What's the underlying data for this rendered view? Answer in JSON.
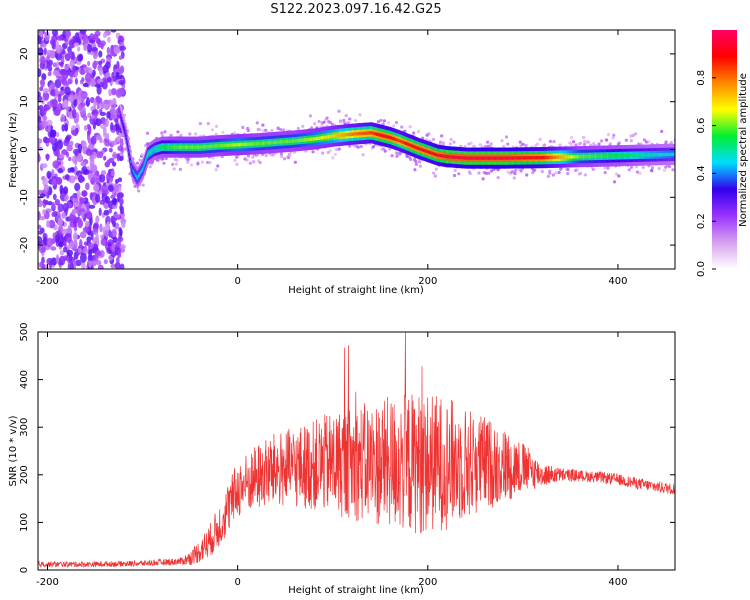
{
  "title": "S122.2023.097.16.42.G25",
  "colors": {
    "snr_line": "#ee3333",
    "background": "#ffffff",
    "axis": "#000000"
  },
  "chart_data": [
    {
      "type": "heatmap",
      "xlabel": "Height of straight line (km)",
      "ylabel": "Frequency (Hz)",
      "xlim": [
        -210,
        460
      ],
      "ylim": [
        -25,
        25
      ],
      "x_ticks": [
        "-200",
        "0",
        "200",
        "400"
      ],
      "y_ticks": [
        "20",
        "10",
        "0",
        "-10",
        "-20"
      ],
      "colorbar": {
        "label": "Normalized spectral amplitude",
        "range": [
          0,
          1
        ],
        "ticks": [
          "0.0",
          "0.2",
          "0.4",
          "0.6",
          "0.8"
        ],
        "colors": [
          "#ffffff",
          "#d8a0f0",
          "#9933ff",
          "#3300ee",
          "#00ddff",
          "#00ee33",
          "#ffff00",
          "#ff8800",
          "#ff0000",
          "#ff0066"
        ]
      },
      "noise_region_x": [
        -210,
        -120
      ],
      "ridge": {
        "x": [
          -125,
          -118,
          -112,
          -106,
          -100,
          -95,
          -88,
          -80,
          -60,
          -40,
          -20,
          0,
          20,
          40,
          60,
          80,
          100,
          120,
          140,
          150,
          160,
          170,
          180,
          190,
          200,
          210,
          220,
          240,
          280,
          320,
          360,
          400,
          460
        ],
        "y": [
          8,
          3,
          -4,
          -6,
          -4,
          -1,
          0,
          0.5,
          0.5,
          0.5,
          0.8,
          1,
          1.2,
          1.5,
          1.8,
          2.2,
          2.8,
          3.2,
          3.5,
          3.0,
          2.5,
          1.8,
          1,
          0.2,
          -0.5,
          -1.2,
          -1.5,
          -1.8,
          -1.8,
          -1.7,
          -1.5,
          -1.3,
          -1.0
        ],
        "amplitude": [
          0.3,
          0.35,
          0.4,
          0.45,
          0.45,
          0.5,
          0.5,
          0.55,
          0.6,
          0.6,
          0.6,
          0.65,
          0.6,
          0.6,
          0.6,
          0.65,
          0.7,
          0.8,
          0.85,
          0.9,
          0.9,
          0.85,
          0.9,
          0.9,
          0.9,
          0.92,
          0.95,
          0.95,
          0.95,
          0.9,
          0.6,
          0.55,
          0.45
        ]
      }
    },
    {
      "type": "line",
      "xlabel": "Height of straight line (km)",
      "ylabel": "SNR (10 * v/v)",
      "xlim": [
        -210,
        460
      ],
      "ylim": [
        0,
        500
      ],
      "x_ticks": [
        "-200",
        "0",
        "200",
        "400"
      ],
      "y_ticks": [
        "500",
        "400",
        "300",
        "200",
        "100",
        "0"
      ],
      "series": [
        {
          "x": [
            -210,
            -150,
            -100,
            -60,
            -50,
            -40,
            -30,
            -20,
            -10,
            0,
            20,
            40,
            60,
            80,
            100,
            120,
            140,
            160,
            180,
            200,
            220,
            240,
            260,
            280,
            300,
            320,
            340,
            360,
            380,
            400,
            420,
            440,
            460
          ],
          "y_mean": [
            12,
            12,
            14,
            18,
            25,
            40,
            60,
            90,
            130,
            170,
            195,
            210,
            215,
            220,
            225,
            225,
            225,
            225,
            225,
            225,
            225,
            225,
            225,
            220,
            215,
            200,
            200,
            198,
            195,
            190,
            182,
            175,
            170
          ],
          "y_spread": [
            6,
            6,
            6,
            8,
            15,
            25,
            35,
            45,
            55,
            60,
            70,
            80,
            85,
            95,
            110,
            120,
            130,
            140,
            150,
            150,
            140,
            120,
            100,
            80,
            55,
            25,
            15,
            12,
            12,
            12,
            12,
            12,
            12
          ],
          "peak_max": 500
        }
      ]
    }
  ]
}
